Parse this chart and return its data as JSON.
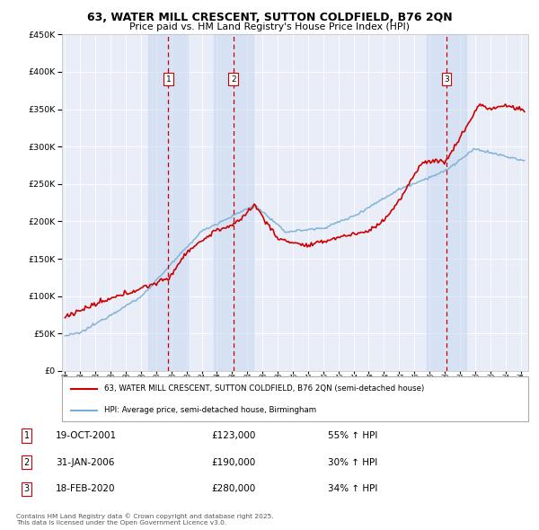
{
  "title_line1": "63, WATER MILL CRESCENT, SUTTON COLDFIELD, B76 2QN",
  "title_line2": "Price paid vs. HM Land Registry's House Price Index (HPI)",
  "legend_label1": "63, WATER MILL CRESCENT, SUTTON COLDFIELD, B76 2QN (semi-detached house)",
  "legend_label2": "HPI: Average price, semi-detached house, Birmingham",
  "transactions": [
    {
      "num": 1,
      "date": "19-OCT-2001",
      "price": 123000,
      "hpi_pct": "55% ↑ HPI",
      "year": 2001.8
    },
    {
      "num": 2,
      "date": "31-JAN-2006",
      "price": 190000,
      "hpi_pct": "30% ↑ HPI",
      "year": 2006.08
    },
    {
      "num": 3,
      "date": "18-FEB-2020",
      "price": 280000,
      "hpi_pct": "34% ↑ HPI",
      "year": 2020.12
    }
  ],
  "footnote": "Contains HM Land Registry data © Crown copyright and database right 2025.\nThis data is licensed under the Open Government Licence v3.0.",
  "ylim": [
    0,
    450000
  ],
  "xlim": [
    1994.8,
    2025.5
  ],
  "plot_bg": "#e8edf8",
  "red_color": "#cc0000",
  "blue_color": "#7aadd4",
  "shade_color": "#c8d8f0",
  "grid_color": "#ffffff",
  "shade_alpha": 0.55
}
